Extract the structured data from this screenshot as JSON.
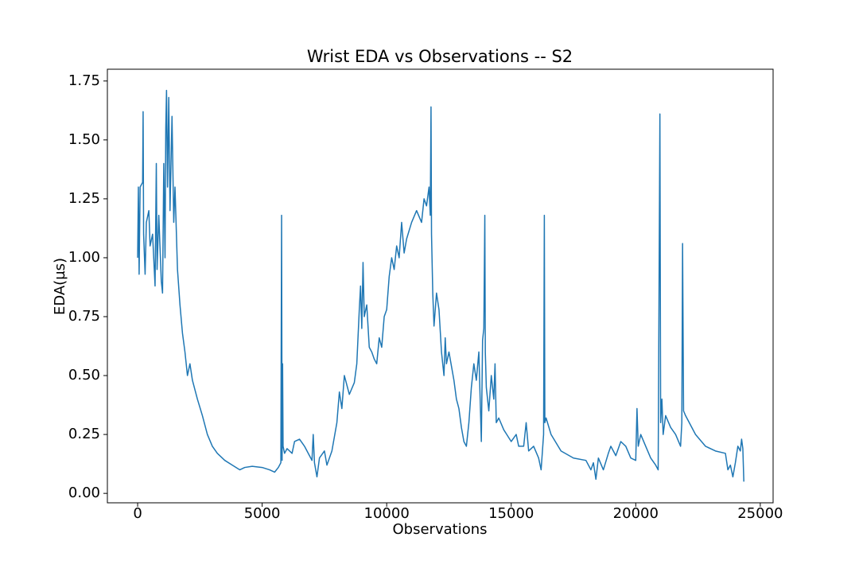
{
  "chart_data": {
    "type": "line",
    "title": "Wrist EDA vs Observations -- S2",
    "x_label": "Observations",
    "y_label": "EDA(µs)",
    "color": "#1f77b4",
    "xlim": [
      -1215,
      25515
    ],
    "ylim": [
      -0.04,
      1.8
    ],
    "xticks": [
      0,
      5000,
      10000,
      15000,
      20000,
      25000
    ],
    "yticks": [
      {
        "value": 0,
        "label": "0.00"
      },
      {
        "value": 0.25,
        "label": "0.25"
      },
      {
        "value": 0.5,
        "label": "0.50"
      },
      {
        "value": 0.75,
        "label": "0.75"
      },
      {
        "value": 1,
        "label": "1.00"
      },
      {
        "value": 1.25,
        "label": "1.25"
      },
      {
        "value": 1.5,
        "label": "1.50"
      },
      {
        "value": 1.75,
        "label": "1.75"
      }
    ],
    "x": [
      0,
      30,
      60,
      100,
      200,
      220,
      240,
      300,
      350,
      450,
      500,
      600,
      700,
      750,
      780,
      850,
      950,
      1000,
      1050,
      1100,
      1130,
      1160,
      1200,
      1250,
      1300,
      1380,
      1450,
      1500,
      1600,
      1700,
      1800,
      1900,
      2000,
      2100,
      2200,
      2400,
      2600,
      2800,
      3000,
      3200,
      3500,
      3800,
      4100,
      4300,
      4600,
      5000,
      5300,
      5500,
      5650,
      5750,
      5780,
      5800,
      5820,
      5840,
      5900,
      6000,
      6200,
      6300,
      6500,
      6700,
      6900,
      7000,
      7050,
      7100,
      7200,
      7300,
      7500,
      7600,
      7800,
      8000,
      8100,
      8200,
      8300,
      8500,
      8700,
      8800,
      8900,
      8950,
      9000,
      9050,
      9100,
      9200,
      9300,
      9400,
      9500,
      9600,
      9700,
      9800,
      9900,
      10000,
      10100,
      10200,
      10300,
      10400,
      10500,
      10600,
      10700,
      10800,
      11000,
      11200,
      11400,
      11500,
      11600,
      11700,
      11750,
      11780,
      11800,
      11850,
      11900,
      12000,
      12100,
      12200,
      12300,
      12350,
      12400,
      12500,
      12700,
      12800,
      12900,
      13000,
      13100,
      13200,
      13300,
      13400,
      13500,
      13600,
      13700,
      13800,
      13850,
      13900,
      13940,
      13960,
      14000,
      14100,
      14200,
      14300,
      14350,
      14400,
      14500,
      14700,
      15000,
      15200,
      15300,
      15500,
      15600,
      15700,
      15900,
      16100,
      16200,
      16300,
      16330,
      16350,
      16400,
      16600,
      17000,
      17500,
      18000,
      18200,
      18300,
      18400,
      18500,
      18700,
      18900,
      19000,
      19200,
      19400,
      19600,
      19800,
      20000,
      20050,
      20100,
      20200,
      20400,
      20600,
      20800,
      20900,
      20970,
      21000,
      21050,
      21100,
      21200,
      21400,
      21600,
      21800,
      21850,
      21880,
      21920,
      22000,
      22400,
      22800,
      23200,
      23600,
      23700,
      23800,
      23900,
      24000,
      24100,
      24200,
      24250,
      24300,
      24340
    ],
    "values": [
      1.0,
      1.3,
      0.93,
      1.3,
      1.32,
      1.62,
      1.1,
      0.93,
      1.15,
      1.2,
      1.05,
      1.1,
      0.88,
      1.4,
      0.95,
      1.18,
      0.9,
      0.85,
      1.4,
      1.0,
      1.55,
      1.71,
      1.3,
      1.68,
      1.2,
      1.6,
      1.15,
      1.3,
      0.95,
      0.8,
      0.68,
      0.6,
      0.5,
      0.55,
      0.48,
      0.4,
      0.33,
      0.25,
      0.2,
      0.17,
      0.14,
      0.12,
      0.1,
      0.11,
      0.115,
      0.11,
      0.1,
      0.09,
      0.11,
      0.13,
      1.18,
      0.14,
      0.55,
      0.2,
      0.17,
      0.19,
      0.17,
      0.22,
      0.23,
      0.2,
      0.16,
      0.14,
      0.25,
      0.13,
      0.07,
      0.15,
      0.18,
      0.12,
      0.18,
      0.3,
      0.43,
      0.36,
      0.5,
      0.42,
      0.47,
      0.55,
      0.78,
      0.88,
      0.7,
      0.98,
      0.75,
      0.8,
      0.62,
      0.6,
      0.57,
      0.55,
      0.66,
      0.62,
      0.75,
      0.78,
      0.92,
      1.0,
      0.95,
      1.05,
      1.0,
      1.15,
      1.02,
      1.08,
      1.15,
      1.2,
      1.15,
      1.25,
      1.22,
      1.3,
      1.18,
      1.64,
      1.1,
      0.85,
      0.71,
      0.85,
      0.78,
      0.6,
      0.5,
      0.66,
      0.55,
      0.6,
      0.48,
      0.4,
      0.36,
      0.28,
      0.22,
      0.2,
      0.3,
      0.45,
      0.55,
      0.48,
      0.6,
      0.22,
      0.65,
      0.7,
      1.18,
      0.6,
      0.45,
      0.35,
      0.5,
      0.4,
      0.55,
      0.3,
      0.32,
      0.27,
      0.22,
      0.25,
      0.2,
      0.2,
      0.3,
      0.18,
      0.2,
      0.15,
      0.1,
      0.25,
      1.18,
      0.3,
      0.32,
      0.25,
      0.18,
      0.15,
      0.14,
      0.1,
      0.13,
      0.06,
      0.15,
      0.1,
      0.17,
      0.2,
      0.16,
      0.22,
      0.2,
      0.15,
      0.14,
      0.36,
      0.2,
      0.25,
      0.2,
      0.15,
      0.12,
      0.1,
      1.61,
      0.3,
      0.4,
      0.25,
      0.33,
      0.28,
      0.25,
      0.2,
      0.3,
      1.06,
      0.35,
      0.33,
      0.25,
      0.2,
      0.18,
      0.17,
      0.1,
      0.12,
      0.07,
      0.13,
      0.2,
      0.18,
      0.23,
      0.19,
      0.05
    ]
  }
}
